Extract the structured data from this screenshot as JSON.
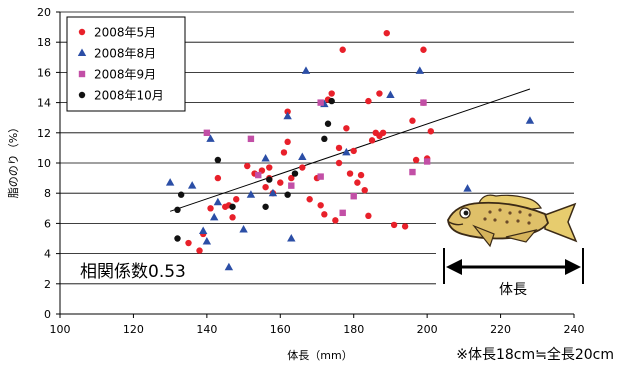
{
  "chart_data": {
    "type": "scatter",
    "title": "",
    "xlabel": "体長（mm）",
    "ylabel": "脂ののり（%）",
    "xlim": [
      100,
      240
    ],
    "ylim": [
      0,
      20
    ],
    "xticks": [
      100,
      120,
      140,
      160,
      180,
      200,
      220,
      240
    ],
    "yticks": [
      0,
      2,
      4,
      6,
      8,
      10,
      12,
      14,
      16,
      18,
      20
    ],
    "grid": "horizontal",
    "legend_position": "top-left",
    "series": [
      {
        "name": "2008年5月",
        "marker": "circle",
        "color": "#e8202a",
        "points": [
          [
            135,
            4.7
          ],
          [
            138,
            4.2
          ],
          [
            139,
            5.3
          ],
          [
            141,
            7.0
          ],
          [
            143,
            9.0
          ],
          [
            145,
            7.1
          ],
          [
            146,
            7.2
          ],
          [
            147,
            6.4
          ],
          [
            148,
            7.6
          ],
          [
            151,
            9.8
          ],
          [
            153,
            9.3
          ],
          [
            155,
            9.5
          ],
          [
            156,
            8.4
          ],
          [
            157,
            9.0
          ],
          [
            157,
            9.7
          ],
          [
            158,
            8.0
          ],
          [
            160,
            8.7
          ],
          [
            161,
            10.7
          ],
          [
            162,
            11.4
          ],
          [
            162,
            13.4
          ],
          [
            163,
            9.0
          ],
          [
            166,
            9.7
          ],
          [
            168,
            7.6
          ],
          [
            170,
            9.0
          ],
          [
            171,
            7.2
          ],
          [
            172,
            6.6
          ],
          [
            173,
            14.2
          ],
          [
            174,
            14.6
          ],
          [
            175,
            6.2
          ],
          [
            176,
            10.0
          ],
          [
            176,
            11.0
          ],
          [
            177,
            17.5
          ],
          [
            178,
            12.3
          ],
          [
            179,
            9.3
          ],
          [
            180,
            10.8
          ],
          [
            181,
            8.7
          ],
          [
            182,
            9.2
          ],
          [
            183,
            8.2
          ],
          [
            184,
            14.1
          ],
          [
            184,
            6.5
          ],
          [
            185,
            11.5
          ],
          [
            186,
            12.0
          ],
          [
            187,
            11.8
          ],
          [
            187,
            14.6
          ],
          [
            188,
            12.0
          ],
          [
            189,
            18.6
          ],
          [
            191,
            5.9
          ],
          [
            194,
            5.8
          ],
          [
            196,
            12.8
          ],
          [
            197,
            10.2
          ],
          [
            199,
            17.5
          ],
          [
            199,
            14.0
          ],
          [
            200,
            10.3
          ],
          [
            201,
            12.1
          ]
        ]
      },
      {
        "name": "2008年8月",
        "marker": "triangle",
        "color": "#2b4ea6",
        "points": [
          [
            130,
            8.7
          ],
          [
            136,
            8.5
          ],
          [
            139,
            5.5
          ],
          [
            140,
            4.8
          ],
          [
            141,
            11.6
          ],
          [
            142,
            6.4
          ],
          [
            143,
            7.4
          ],
          [
            146,
            3.1
          ],
          [
            150,
            5.6
          ],
          [
            152,
            7.9
          ],
          [
            156,
            10.3
          ],
          [
            158,
            8.0
          ],
          [
            162,
            13.1
          ],
          [
            163,
            5.0
          ],
          [
            166,
            10.4
          ],
          [
            167,
            16.1
          ],
          [
            172,
            13.9
          ],
          [
            178,
            10.7
          ],
          [
            190,
            14.5
          ],
          [
            198,
            16.1
          ],
          [
            211,
            8.3
          ],
          [
            228,
            12.8
          ]
        ]
      },
      {
        "name": "2008年9月",
        "marker": "square",
        "color": "#c24fa6",
        "points": [
          [
            140,
            12.0
          ],
          [
            152,
            11.6
          ],
          [
            154,
            9.2
          ],
          [
            163,
            8.5
          ],
          [
            171,
            14.0
          ],
          [
            171,
            9.1
          ],
          [
            177,
            6.7
          ],
          [
            180,
            7.8
          ],
          [
            196,
            9.4
          ],
          [
            199,
            14.0
          ],
          [
            200,
            10.1
          ]
        ]
      },
      {
        "name": "2008年10月",
        "marker": "circle",
        "color": "#111111",
        "points": [
          [
            132,
            6.9
          ],
          [
            132,
            5.0
          ],
          [
            133,
            7.9
          ],
          [
            143,
            10.2
          ],
          [
            147,
            7.1
          ],
          [
            156,
            7.1
          ],
          [
            157,
            8.9
          ],
          [
            162,
            7.9
          ],
          [
            164,
            9.3
          ],
          [
            172,
            11.6
          ],
          [
            173,
            12.6
          ],
          [
            174,
            14.1
          ]
        ]
      }
    ],
    "trendline": [
      [
        130,
        6.8
      ],
      [
        228,
        14.9
      ]
    ],
    "annotations": {
      "correlation": "相関係数0.53",
      "body_length_label": "体長",
      "note": "※体長18cm≒全長20cm"
    }
  }
}
